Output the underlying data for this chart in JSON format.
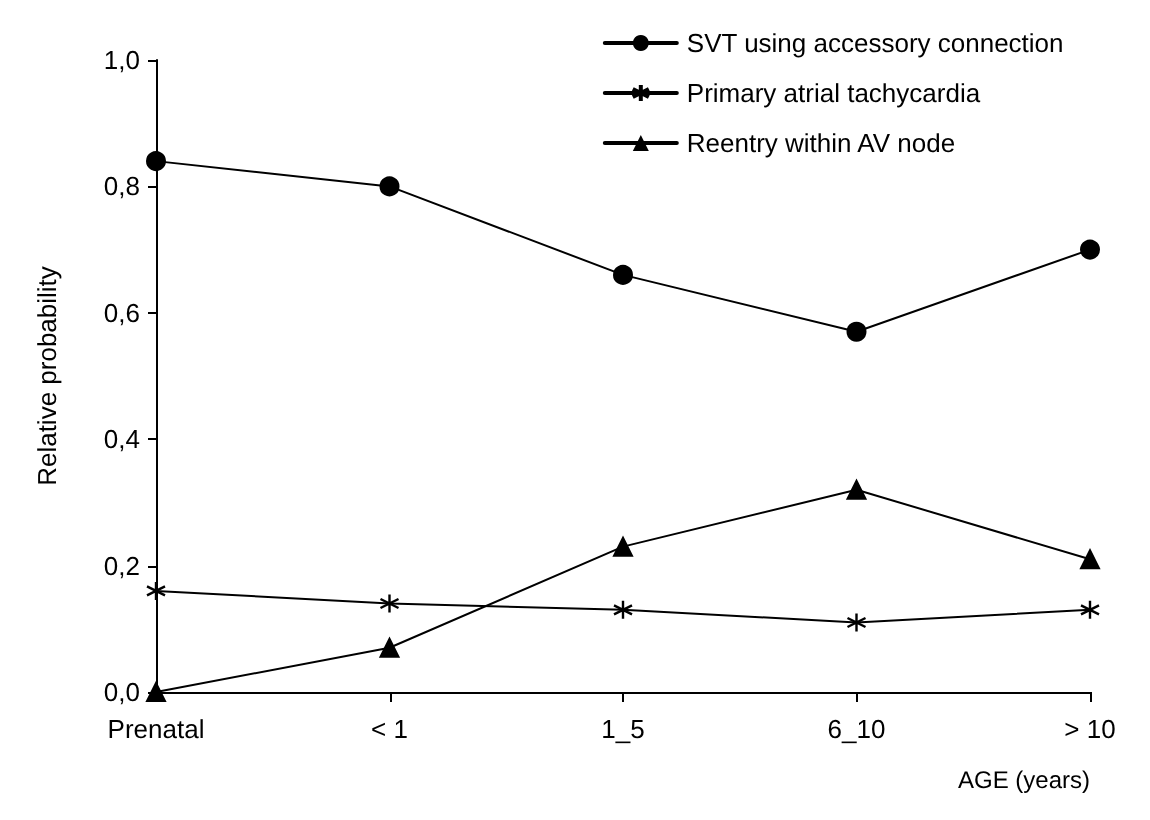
{
  "chart_data": {
    "type": "line",
    "xlabel": "AGE (years)",
    "ylabel": "Relative probability",
    "categories": [
      "Prenatal",
      "< 1",
      "1_5",
      "6_10",
      "> 10"
    ],
    "series": [
      {
        "name": "SVT using accessory connection",
        "color": "#000000",
        "marker": "circle",
        "values": [
          0.84,
          0.8,
          0.66,
          0.57,
          0.7
        ]
      },
      {
        "name": "Primary atrial tachycardia",
        "color": "#000000",
        "marker": "cross",
        "values": [
          0.16,
          0.14,
          0.13,
          0.11,
          0.13
        ]
      },
      {
        "name": "Reentry within AV node",
        "color": "#000000",
        "marker": "triangle",
        "values": [
          0,
          0.07,
          0.23,
          0.32,
          0.21
        ]
      }
    ],
    "ylim": [
      0,
      1
    ],
    "yticks": [
      {
        "value": 0,
        "label": "0,0"
      },
      {
        "value": 0.2,
        "label": "0,2"
      },
      {
        "value": 0.4,
        "label": "0,4"
      },
      {
        "value": 0.6,
        "label": "0,6"
      },
      {
        "value": 0.8,
        "label": "0,8"
      },
      {
        "value": 1,
        "label": "1,0"
      }
    ],
    "grid": false,
    "legend": "top right",
    "line_style": "solid"
  }
}
